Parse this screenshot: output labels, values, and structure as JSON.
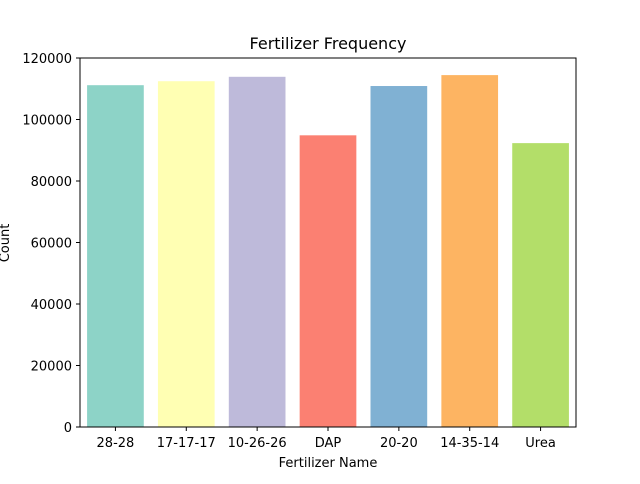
{
  "chart_data": {
    "type": "bar",
    "title": "Fertilizer Frequency",
    "xlabel": "Fertilizer Name",
    "ylabel": "Count",
    "categories": [
      "28-28",
      "17-17-17",
      "10-26-26",
      "DAP",
      "20-20",
      "14-35-14",
      "Urea"
    ],
    "values": [
      111158,
      112453,
      113887,
      94860,
      110889,
      114436,
      92317
    ],
    "colors": [
      "#8dd3c7",
      "#ffffb3",
      "#bebada",
      "#fb8072",
      "#80b1d3",
      "#fdb462",
      "#b3de69"
    ],
    "ylim": [
      0,
      120000
    ],
    "yticks": [
      0,
      20000,
      40000,
      60000,
      80000,
      100000,
      120000
    ],
    "grid": false,
    "legend": "none"
  }
}
